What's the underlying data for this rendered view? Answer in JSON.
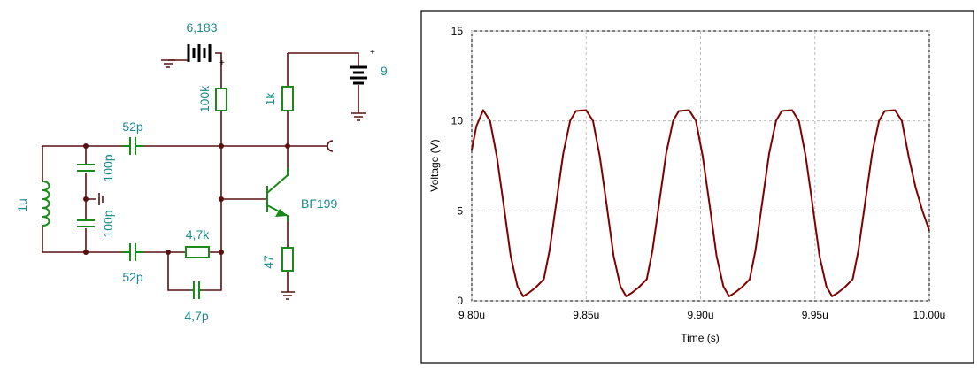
{
  "circuit": {
    "labels": {
      "battery_bias": "6,183",
      "battery_supply": "9",
      "r_bias": "100k",
      "r_collector": "1k",
      "c_top": "52p",
      "c_div_top": "100p",
      "c_div_bottom": "100p",
      "inductor": "1u",
      "transistor": "BF199",
      "r_feedback": "4,7k",
      "c_bottom": "52p",
      "r_emitter": "47",
      "c_feedback": "4,7p"
    }
  },
  "chart_data": {
    "type": "line",
    "x_label": "Time (s)",
    "y_label": "Voltage (V)",
    "xlim": [
      9.8,
      10.0
    ],
    "ylim": [
      0,
      15
    ],
    "xticks": [
      {
        "value": 9.8,
        "label": "9.80u"
      },
      {
        "value": 9.85,
        "label": "9.85u"
      },
      {
        "value": 9.9,
        "label": "9.90u"
      },
      {
        "value": 9.95,
        "label": "9.95u"
      },
      {
        "value": 10.0,
        "label": "10.00u"
      }
    ],
    "yticks": [
      0,
      5,
      10,
      15
    ],
    "grid": true,
    "series": [
      {
        "color": "#800000",
        "x": [
          9.8,
          9.802,
          9.805,
          9.808,
          9.811,
          9.814,
          9.817,
          9.82,
          9.8225,
          9.825,
          9.828,
          9.8315,
          9.834,
          9.837,
          9.84,
          9.843,
          9.8455,
          9.85,
          9.853,
          9.856,
          9.859,
          9.862,
          9.865,
          9.8675,
          9.87,
          9.873,
          9.8765,
          9.879,
          9.882,
          9.885,
          9.888,
          9.8905,
          9.895,
          9.898,
          9.901,
          9.904,
          9.907,
          9.91,
          9.9125,
          9.915,
          9.918,
          9.9215,
          9.924,
          9.927,
          9.93,
          9.933,
          9.9355,
          9.94,
          9.943,
          9.946,
          9.949,
          9.952,
          9.955,
          9.9575,
          9.96,
          9.963,
          9.9665,
          9.969,
          9.972,
          9.975,
          9.978,
          9.9805,
          9.985,
          9.988,
          9.991,
          9.994,
          9.997,
          10.0
        ],
        "values": [
          8.4,
          9.7,
          10.6,
          10.0,
          8.0,
          5.3,
          2.5,
          0.8,
          0.25,
          0.45,
          0.75,
          1.2,
          2.8,
          5.5,
          8.2,
          10.0,
          10.55,
          10.6,
          10.0,
          8.0,
          5.3,
          2.5,
          0.8,
          0.25,
          0.45,
          0.75,
          1.2,
          2.8,
          5.5,
          8.2,
          10.0,
          10.55,
          10.6,
          10.0,
          8.0,
          5.3,
          2.5,
          0.8,
          0.25,
          0.45,
          0.75,
          1.2,
          2.8,
          5.5,
          8.2,
          10.0,
          10.55,
          10.6,
          10.0,
          8.0,
          5.3,
          2.5,
          0.8,
          0.25,
          0.45,
          0.75,
          1.2,
          2.8,
          5.5,
          8.2,
          10.0,
          10.55,
          10.6,
          10.0,
          8.0,
          6.3,
          5.0,
          3.9
        ]
      }
    ]
  }
}
